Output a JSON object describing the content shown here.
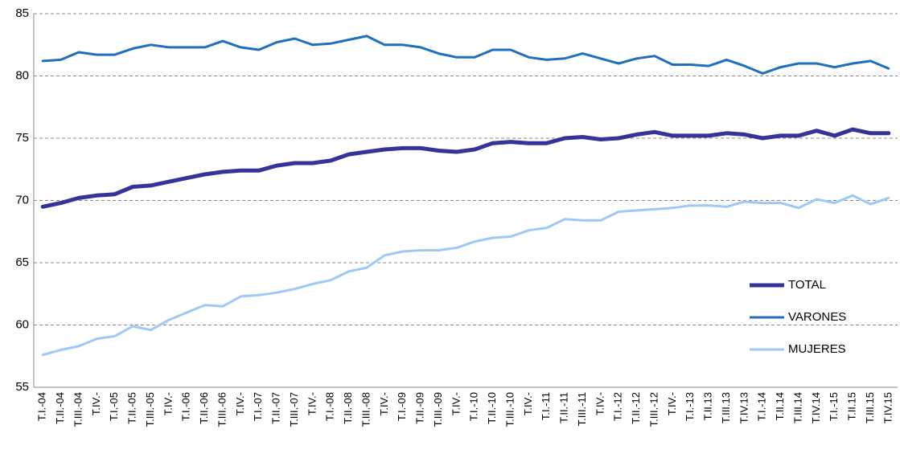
{
  "chart_data": {
    "type": "line",
    "categories": [
      "T.I.-04",
      "T.II.-04",
      "T.III.-04",
      "T.IV.-",
      "T.I.-05",
      "T.II.-05",
      "T.III.-05",
      "T.IV.-",
      "T.I.-06",
      "T.II.-06",
      "T.III.-06",
      "T.IV.-",
      "T.I.-07",
      "T.II.-07",
      "T.III.-07",
      "T.IV.-",
      "T.I.-08",
      "T.II.-08",
      "T.III.-08",
      "T.IV.-",
      "T.I.-09",
      "T.II.-09",
      "T.III.-09",
      "T.IV.-",
      "T.I.-10",
      "T.II.-10",
      "T.III.-10",
      "T.IV.-",
      "T.I.-11",
      "T.II.-11",
      "T.III.-11",
      "T.IV.-",
      "T.I.-12",
      "T.II.-12",
      "T.III.-12",
      "T.IV.-",
      "T.I.-13",
      "T.II.13",
      "T.III.13",
      "T.IV.13",
      "T.I.-14",
      "T.II.14",
      "T.III.14",
      "T.IV.14",
      "T.I.-15",
      "T.II.15",
      "T.III.15",
      "T.IV.15"
    ],
    "series": [
      {
        "name": "TOTAL",
        "color": "#333399",
        "values": [
          69.5,
          69.8,
          70.2,
          70.4,
          70.5,
          71.1,
          71.2,
          71.5,
          71.8,
          72.1,
          72.3,
          72.4,
          72.4,
          72.8,
          73.0,
          73.0,
          73.2,
          73.7,
          73.9,
          74.1,
          74.2,
          74.2,
          74.0,
          73.9,
          74.1,
          74.6,
          74.7,
          74.6,
          74.6,
          75.0,
          75.1,
          74.9,
          75.0,
          75.3,
          75.5,
          75.2,
          75.2,
          75.2,
          75.4,
          75.3,
          75.0,
          75.2,
          75.2,
          75.6,
          75.2,
          75.7,
          75.4,
          75.4
        ]
      },
      {
        "name": "VARONES",
        "color": "#1f6fbf",
        "values": [
          81.2,
          81.3,
          81.9,
          81.7,
          81.7,
          82.2,
          82.5,
          82.3,
          82.3,
          82.3,
          82.8,
          82.3,
          82.1,
          82.7,
          83.0,
          82.5,
          82.6,
          82.9,
          83.2,
          82.5,
          82.5,
          82.3,
          81.8,
          81.5,
          81.5,
          82.1,
          82.1,
          81.5,
          81.3,
          81.4,
          81.8,
          81.4,
          81.0,
          81.4,
          81.6,
          80.9,
          80.9,
          80.8,
          81.3,
          80.8,
          80.2,
          80.7,
          81.0,
          81.0,
          80.7,
          81.0,
          81.2,
          80.6
        ]
      },
      {
        "name": "MUJERES",
        "color": "#9ec9f5",
        "values": [
          57.6,
          58.0,
          58.3,
          58.9,
          59.1,
          59.9,
          59.6,
          60.4,
          61.0,
          61.6,
          61.5,
          62.3,
          62.4,
          62.6,
          62.9,
          63.3,
          63.6,
          64.3,
          64.6,
          65.6,
          65.9,
          66.0,
          66.0,
          66.2,
          66.7,
          67.0,
          67.1,
          67.6,
          67.8,
          68.5,
          68.4,
          68.4,
          69.1,
          69.2,
          69.3,
          69.4,
          69.6,
          69.6,
          69.5,
          69.9,
          69.8,
          69.8,
          69.4,
          70.1,
          69.8,
          70.4,
          69.7,
          70.2
        ]
      }
    ],
    "ylim": [
      55,
      85
    ],
    "yticks": [
      55,
      60,
      65,
      70,
      75,
      80,
      85
    ],
    "grid": true,
    "legend": "right"
  }
}
